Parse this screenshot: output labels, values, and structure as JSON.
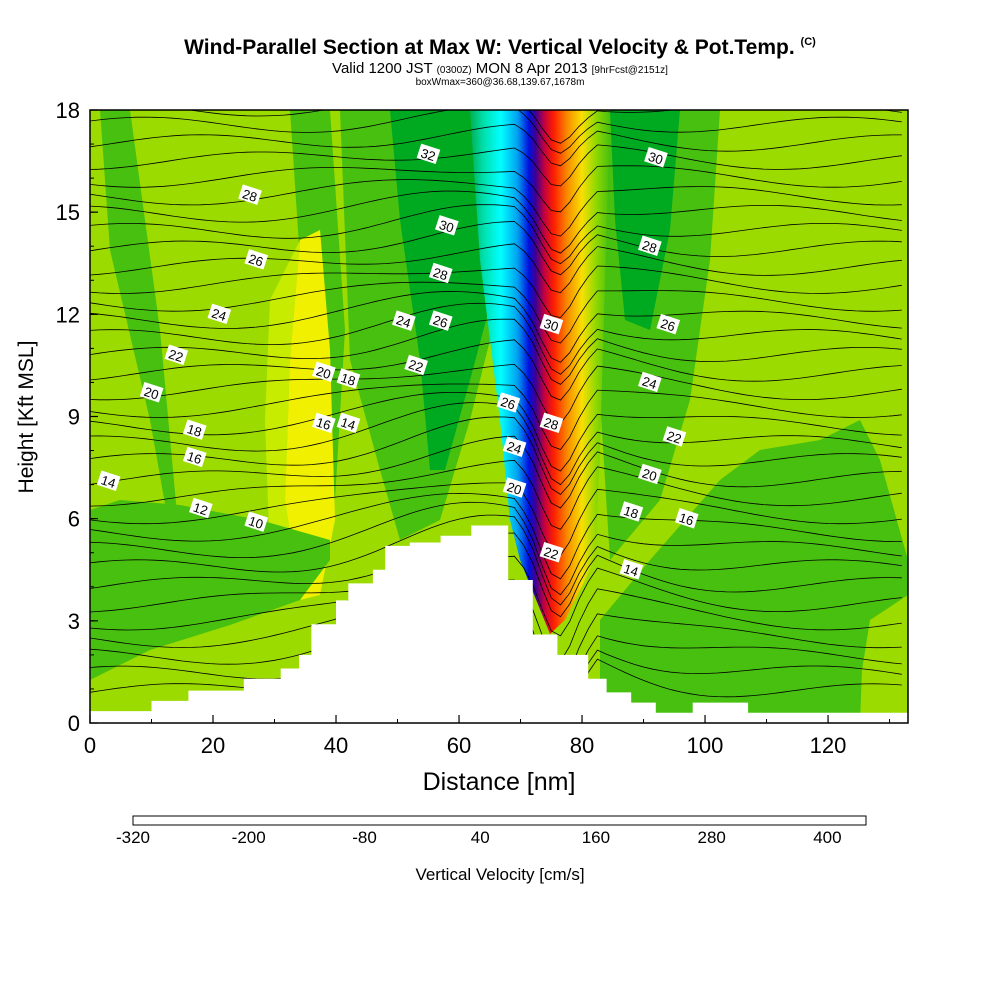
{
  "header": {
    "title": "Wind-Parallel Section at Max W: Vertical Velocity & Pot.Temp.",
    "title_mark": "(C)",
    "valid_prefix": "Valid 1200 JST",
    "valid_utc": "(0300Z)",
    "valid_date": "MON 8 Apr 2013",
    "forecast_tag": "[9hrFcst@2151z]",
    "box_info": "boxWmax=360@36.68,139.67,1678m"
  },
  "chart_data": {
    "type": "contour-section",
    "xlabel": "Distance [nm]",
    "ylabel": "Height [Kft MSL]",
    "xlim": [
      0,
      133
    ],
    "ylim": [
      0,
      18
    ],
    "x_ticks": [
      "0",
      "20",
      "40",
      "60",
      "80",
      "100",
      "120"
    ],
    "y_ticks": [
      "0",
      "3",
      "6",
      "9",
      "12",
      "15",
      "18"
    ],
    "colorbar": {
      "label": "Vertical Velocity [cm/s]",
      "tick_labels": [
        "-320",
        "-200",
        "-80",
        "40",
        "160",
        "280",
        "400"
      ],
      "colors": [
        "#0000ee",
        "#0050f0",
        "#00a0f5",
        "#00f0f0",
        "#00d8a0",
        "#00c060",
        "#00aa20",
        "#48c010",
        "#9bdb00",
        "#c8ec00",
        "#f0f000",
        "#f8d000",
        "#f8a800",
        "#f87800",
        "#f04000",
        "#e00000",
        "#c00040",
        "#900060",
        "#600080"
      ]
    },
    "theta_labels": [
      {
        "x": 3,
        "y": 7.1,
        "t": "14"
      },
      {
        "x": 18,
        "y": 6.3,
        "t": "12"
      },
      {
        "x": 27,
        "y": 5.9,
        "t": "10"
      },
      {
        "x": 17,
        "y": 7.8,
        "t": "16"
      },
      {
        "x": 17,
        "y": 8.6,
        "t": "18"
      },
      {
        "x": 10,
        "y": 9.7,
        "t": "20"
      },
      {
        "x": 14,
        "y": 10.8,
        "t": "22"
      },
      {
        "x": 21,
        "y": 12.0,
        "t": "24"
      },
      {
        "x": 27,
        "y": 13.6,
        "t": "26"
      },
      {
        "x": 26,
        "y": 15.5,
        "t": "28"
      },
      {
        "x": 38,
        "y": 8.8,
        "t": "16"
      },
      {
        "x": 38,
        "y": 10.3,
        "t": "20"
      },
      {
        "x": 42,
        "y": 8.8,
        "t": "14"
      },
      {
        "x": 42,
        "y": 10.1,
        "t": "18"
      },
      {
        "x": 51,
        "y": 11.8,
        "t": "24"
      },
      {
        "x": 53,
        "y": 10.5,
        "t": "22"
      },
      {
        "x": 57,
        "y": 11.8,
        "t": "26"
      },
      {
        "x": 57,
        "y": 13.2,
        "t": "28"
      },
      {
        "x": 58,
        "y": 14.6,
        "t": "30"
      },
      {
        "x": 55,
        "y": 16.7,
        "t": "32"
      },
      {
        "x": 68,
        "y": 9.4,
        "t": "26"
      },
      {
        "x": 69,
        "y": 8.1,
        "t": "24"
      },
      {
        "x": 69,
        "y": 6.9,
        "t": "20"
      },
      {
        "x": 75,
        "y": 5.0,
        "t": "22"
      },
      {
        "x": 75,
        "y": 8.8,
        "t": "28"
      },
      {
        "x": 75,
        "y": 11.7,
        "t": "30"
      },
      {
        "x": 88,
        "y": 4.5,
        "t": "14"
      },
      {
        "x": 88,
        "y": 6.2,
        "t": "18"
      },
      {
        "x": 91,
        "y": 7.3,
        "t": "20"
      },
      {
        "x": 97,
        "y": 6.0,
        "t": "16"
      },
      {
        "x": 95,
        "y": 8.4,
        "t": "22"
      },
      {
        "x": 91,
        "y": 10.0,
        "t": "24"
      },
      {
        "x": 94,
        "y": 11.7,
        "t": "26"
      },
      {
        "x": 91,
        "y": 14.0,
        "t": "28"
      },
      {
        "x": 92,
        "y": 16.6,
        "t": "30"
      }
    ],
    "terrain": {
      "x": [
        0,
        10,
        10,
        16,
        16,
        25,
        25,
        31,
        31,
        34,
        34,
        36,
        36,
        40,
        40,
        42,
        42,
        46,
        46,
        48,
        48,
        52,
        52,
        57,
        57,
        62,
        62,
        66,
        66,
        68,
        68,
        72,
        72,
        76,
        76,
        81,
        81,
        84,
        84,
        88,
        88,
        92,
        92,
        98,
        98,
        101,
        101,
        107,
        107,
        113,
        113,
        120,
        120,
        133
      ],
      "y": [
        0.35,
        0.35,
        0.65,
        0.65,
        0.95,
        0.95,
        1.3,
        1.3,
        1.6,
        1.6,
        2.0,
        2.0,
        2.9,
        2.9,
        3.6,
        3.6,
        4.1,
        4.1,
        4.5,
        4.5,
        5.2,
        5.2,
        5.3,
        5.3,
        5.5,
        5.5,
        5.8,
        5.8,
        5.8,
        5.8,
        4.2,
        4.2,
        2.6,
        2.6,
        2.0,
        2.0,
        1.3,
        1.3,
        0.9,
        0.9,
        0.6,
        0.6,
        0.3,
        0.3,
        0.6,
        0.6,
        0.6,
        0.6,
        0.3,
        0.3,
        0.3,
        0.3,
        0.3,
        0.3
      ]
    }
  }
}
